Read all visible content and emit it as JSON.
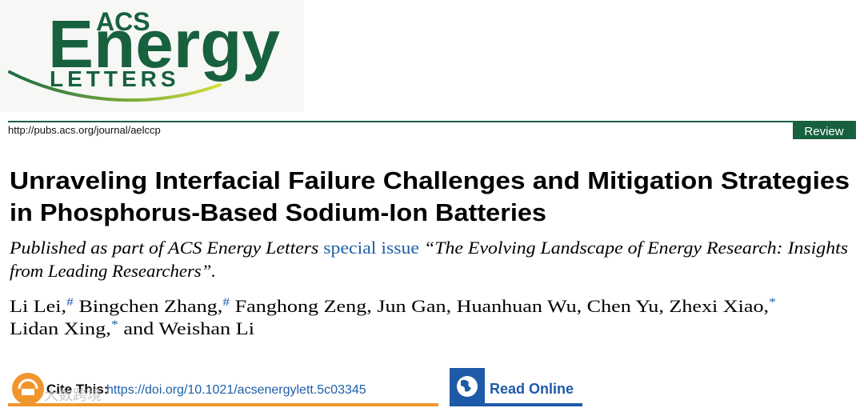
{
  "logo": {
    "acs": "ACS",
    "energy": "Energy",
    "letters": "LETTERS"
  },
  "header": {
    "url": "http://pubs.acs.org/journal/aelccp",
    "article_type": "Review"
  },
  "title": [
    "Unraveling Interfacial Failure Challenges and Mitigation Strategies",
    "in Phosphorus-Based Sodium-Ion Batteries"
  ],
  "published": {
    "lead": "Published as part of ACS Energy Letters",
    "link": "special issue",
    "quote": [
      "“The Evolving Landscape of Energy Research: Insights",
      "from Leading Researchers”."
    ]
  },
  "authors": [
    [
      {
        "name": "Li Lei,",
        "note": "#"
      },
      {
        "name": "Bingchen Zhang,",
        "note": "#"
      },
      {
        "name": "Fanghong Zeng,"
      },
      {
        "name": "Jun Gan,"
      },
      {
        "name": "Huanhuan Wu,"
      },
      {
        "name": "Chen Yu,"
      },
      {
        "name": "Zhexi Xiao,",
        "note": "*"
      }
    ],
    [
      {
        "name": "Lidan Xing,",
        "note": "*"
      },
      {
        "name": "and Weishan Li"
      }
    ]
  ],
  "cite": {
    "label": "Cite This:",
    "doi": "https://doi.org/10.1021/acsenergylett.5c03345"
  },
  "read_online": "Read Online",
  "watermark": "大数跨境"
}
